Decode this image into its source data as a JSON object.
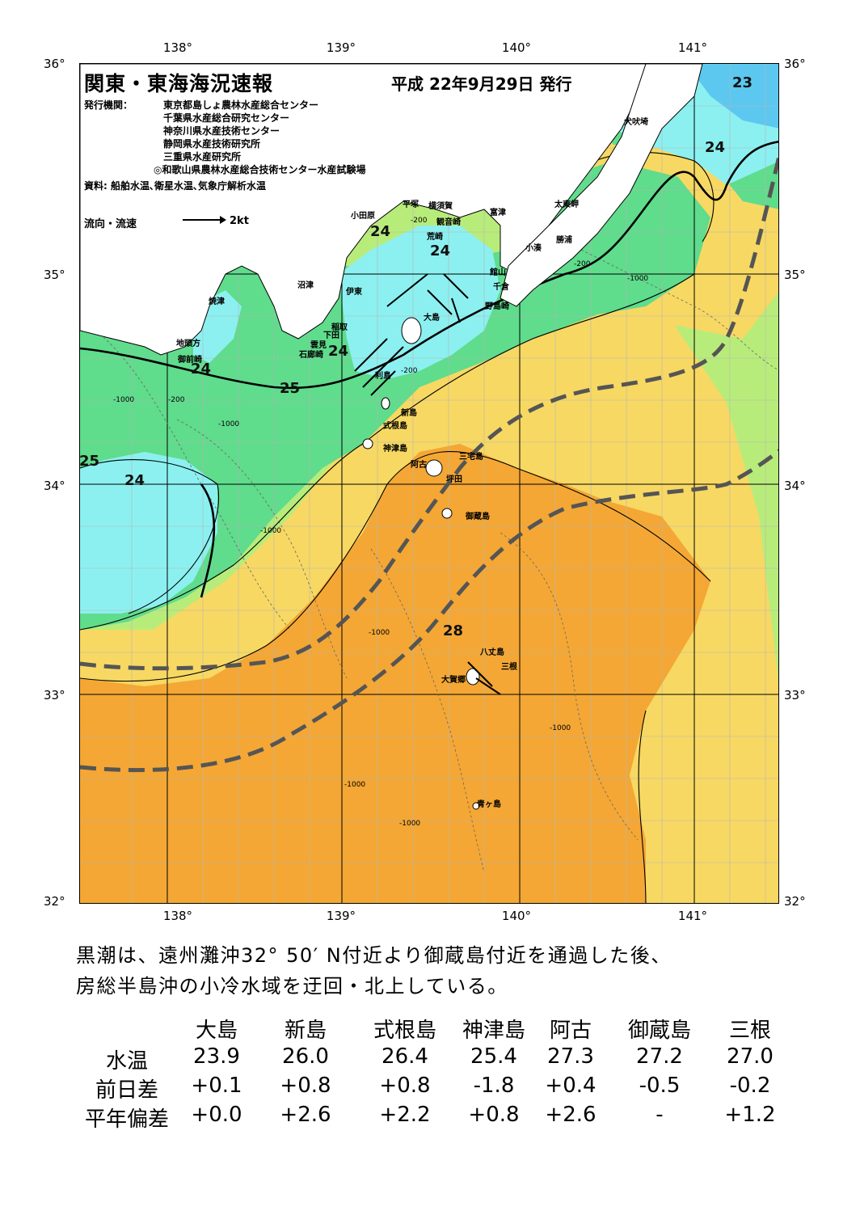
{
  "header": {
    "title": "関東・東海海況速報",
    "issued": "平成 22年9月29日 発行"
  },
  "issuers": {
    "label": "発行機関：",
    "lines": [
      "東京都島しょ農林水産総合センター",
      "千葉県水産総合研究センター",
      "神奈川県水産技術センター",
      "静岡県水産技術研究所",
      "三重県水産研究所",
      "◎和歌山県農林水産総合技術センター水産試験場"
    ],
    "source": "資料: 船舶水温､衛星水温､気象庁解析水温"
  },
  "legend": {
    "label": "流向・流速",
    "speed": "2kt"
  },
  "axes": {
    "lon_labels": [
      "138°",
      "139°",
      "140°",
      "141°"
    ],
    "lat_labels": [
      "36°",
      "35°",
      "34°",
      "33°",
      "32°"
    ]
  },
  "places": {
    "inubosaki": "犬吠埼",
    "taitomisaki": "太東岬",
    "katsuura": "勝浦",
    "kominato": "小湊",
    "futtsu": "富津",
    "yokosuka": "横須賀",
    "kannonzaki": "観音崎",
    "arasaki": "荒崎",
    "hiratsuka": "平塚",
    "odawara": "小田原",
    "tateyama": "館山",
    "chikura": "千倉",
    "nojimazaki": "野島崎",
    "numazu": "沼津",
    "ito": "伊東",
    "yaizu": "焼津",
    "inatori": "稲取",
    "shimoda": "下田",
    "kumomi": "雲見",
    "irozaki": "石廊崎",
    "jitokata": "地頭方",
    "omaezaki": "御前崎",
    "oshima": "大島",
    "toshima": "利島",
    "niijima": "新島",
    "shikinejima": "式根島",
    "kozushima": "神津島",
    "ako": "阿古",
    "miyakejima": "三宅島",
    "tsubota": "坪田",
    "mikurajima": "御蔵島",
    "hachijojima": "八丈島",
    "mitsune": "三根",
    "okago": "大賀郷",
    "aogashima": "青ヶ島"
  },
  "isotherms": [
    "23",
    "24",
    "24",
    "24",
    "24",
    "24",
    "24",
    "25",
    "25",
    "28"
  ],
  "depth_labels": [
    "-200",
    "-1000"
  ],
  "summary": [
    "黒潮は、遠州灘沖32° 50′ N付近より御蔵島付近を通過した後、",
    "房総半島沖の小冷水域を迂回・北上している。"
  ],
  "table": {
    "columns": [
      "大島",
      "新島",
      "式根島",
      "神津島",
      "阿古",
      "御蔵島",
      "三根"
    ],
    "rows": [
      {
        "label": "水温",
        "values": [
          "23.9",
          "26.0",
          "26.4",
          "25.4",
          "27.3",
          "27.2",
          "27.0"
        ]
      },
      {
        "label": "前日差",
        "values": [
          "+0.1",
          "+0.8",
          "+0.8",
          "-1.8",
          "+0.4",
          "-0.5",
          "-0.2"
        ]
      },
      {
        "label": "平年偏差",
        "values": [
          "+0.0",
          "+2.6",
          "+2.2",
          "+0.8",
          "+2.6",
          "-",
          "+1.2"
        ]
      }
    ]
  },
  "colors": {
    "sea_22": "#2f7fe8",
    "sea_23": "#5cc8f0",
    "sea_24": "#8cf0f0",
    "sea_25": "#5fdc8c",
    "sea_26": "#b8ec7a",
    "sea_27": "#f7d863",
    "sea_28": "#f4a734",
    "land": "#ffffff",
    "kuroshio_axis": "#555555"
  }
}
